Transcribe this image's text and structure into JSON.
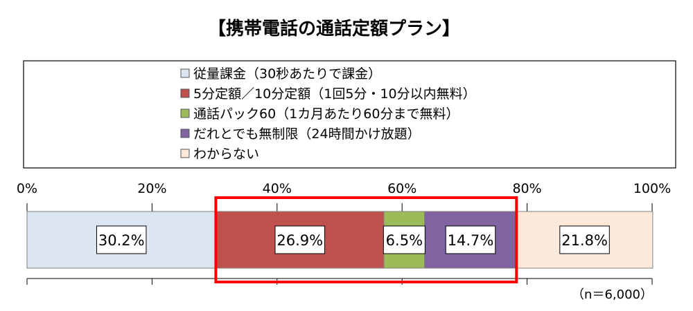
{
  "chart_data": {
    "type": "bar",
    "orientation": "horizontal",
    "stacked": true,
    "title": "【携帯電話の通話定額プラン】",
    "note": "（n＝6,000）",
    "xlim": [
      0,
      100
    ],
    "x_ticks": [
      "0%",
      "20%",
      "40%",
      "60%",
      "80%",
      "100%"
    ],
    "series": [
      {
        "name": "従量課金（30秒あたりで課金）",
        "value": 30.2,
        "label": "30.2%",
        "color": "#DCE6F2"
      },
      {
        "name": "5分定額／10分定額（1回5分・10分以内無料）",
        "value": 26.9,
        "label": "26.9%",
        "color": "#C0504D"
      },
      {
        "name": "通話パック60（1カ月あたり60分まで無料）",
        "value": 6.5,
        "label": "6.5%",
        "color": "#9BBB59"
      },
      {
        "name": "だれとでも無制限（24時間かけ放題）",
        "value": 14.7,
        "label": "14.7%",
        "color": "#8064A2"
      },
      {
        "name": "わからない",
        "value": 21.8,
        "label": "21.8%",
        "color": "#FDE9D9"
      }
    ],
    "legend_position": "top",
    "grid": false,
    "highlight": {
      "from_series": 1,
      "to_series": 3,
      "color": "#FF0000"
    }
  }
}
